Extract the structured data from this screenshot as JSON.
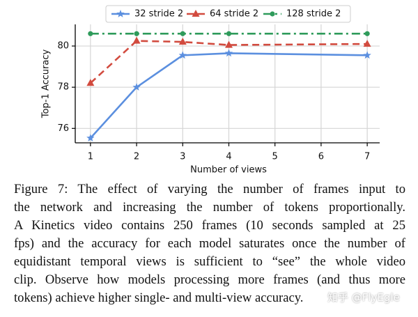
{
  "chart_data": {
    "type": "line",
    "xlabel": "Number of views",
    "ylabel": "Top-1 Accuracy",
    "xlim": [
      0.67,
      7.27
    ],
    "xticks": [
      1,
      2,
      3,
      4,
      5,
      6,
      7
    ],
    "ylim": [
      75.3,
      81.05
    ],
    "yticks": [
      76,
      78,
      80
    ],
    "grid": true,
    "legend": "top",
    "series": [
      {
        "name": "32 stride 2",
        "color": "#5b8fdf",
        "linestyle": "solid",
        "marker": "star",
        "x": [
          1,
          2,
          3,
          4,
          7
        ],
        "values": [
          75.53,
          78.0,
          79.55,
          79.65,
          79.55
        ]
      },
      {
        "name": "64 stride 2",
        "color": "#d24b3f",
        "linestyle": "dashed",
        "marker": "triangle",
        "x": [
          1,
          2,
          3,
          4,
          7
        ],
        "values": [
          78.2,
          80.25,
          80.2,
          80.05,
          80.1
        ]
      },
      {
        "name": "128 stride 2",
        "color": "#2f9b5b",
        "linestyle": "dashdot",
        "marker": "circle",
        "x": [
          1,
          2,
          3,
          4,
          7
        ],
        "values": [
          80.6,
          80.6,
          80.6,
          80.6,
          80.6
        ]
      }
    ]
  },
  "caption": {
    "lines": [
      "Figure 7:  The effect of varying the number of frames input to",
      "the network and increasing the number of tokens proportionally.",
      "A Kinetics video contains 250 frames (10 seconds sampled at 25",
      "fps) and the accuracy for each model saturates once the number of",
      "equidistant temporal views is sufficient to “see” the whole video",
      "clip. Observe how models processing more frames (and thus more",
      "tokens) achieve higher single- and multi-view accuracy."
    ]
  },
  "watermark": "知乎 @FlyEgle"
}
